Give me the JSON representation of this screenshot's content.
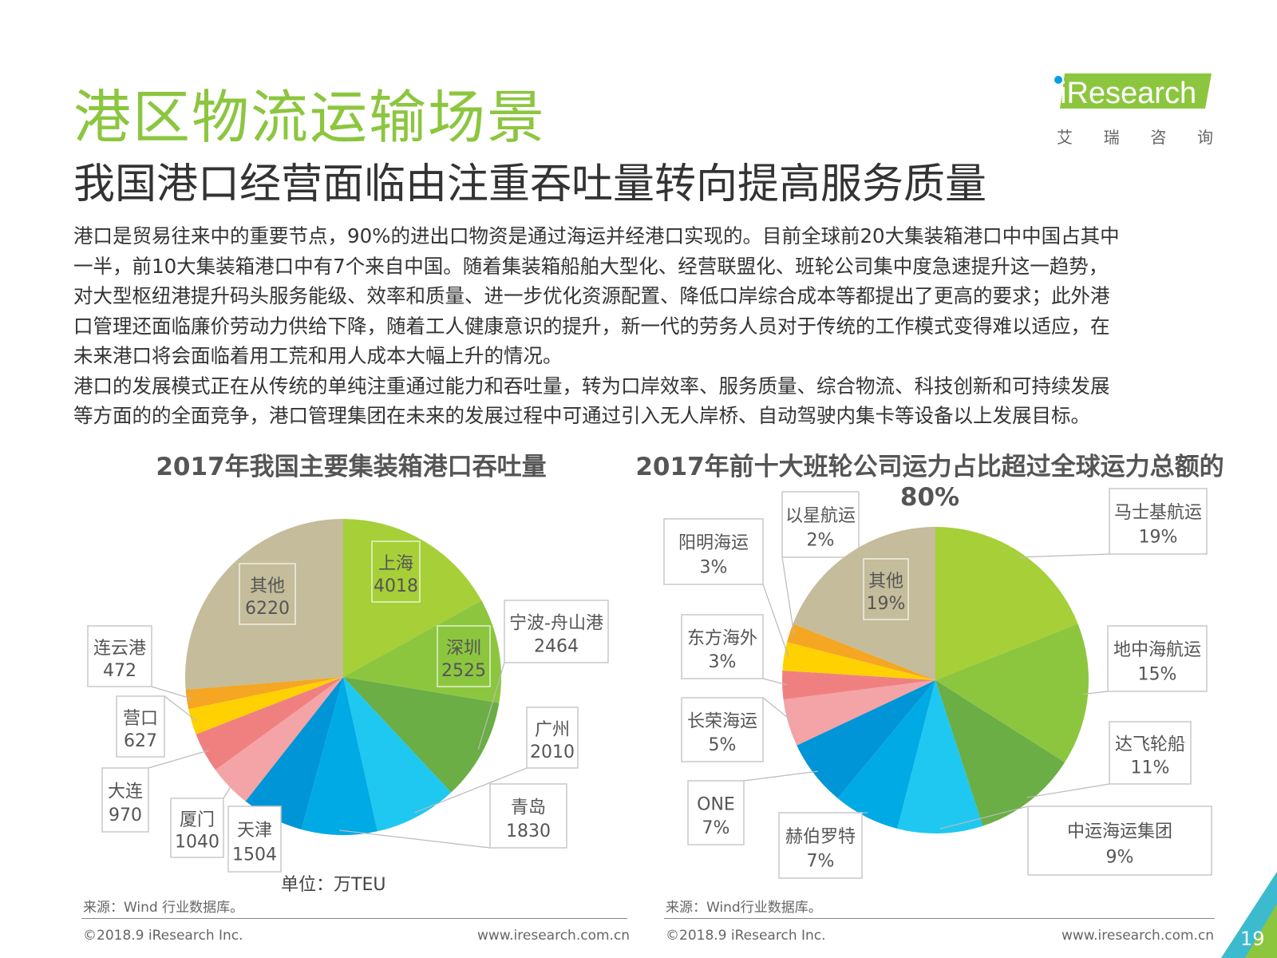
{
  "header": {
    "title": "港区物流运输场景",
    "subtitle": "我国港口经营面临由注重吞吐量转向提高服务质量",
    "logo_text": "iResearch",
    "logo_cn": [
      "艾",
      "瑞",
      "咨",
      "询"
    ]
  },
  "body_lines": [
    "港口是贸易往来中的重要节点，90%的进出口物资是通过海运并经港口实现的。目前全球前20大集装箱港口中中国占其中",
    "一半，前10大集装箱港口中有7个来自中国。随着集装箱船舶大型化、经营联盟化、班轮公司集中度急速提升这一趋势，",
    "对大型枢纽港提升码头服务能级、效率和质量、进一步优化资源配置、降低口岸综合成本等都提出了更高的要求；此外港",
    "口管理还面临廉价劳动力供给下降，随着工人健康意识的提升，新一代的劳务人员对于传统的工作模式变得难以适应，在",
    "未来港口将会面临着用工荒和用人成本大幅上升的情况。",
    "港口的发展模式正在从传统的单纯注重通过能力和吞吐量，转为口岸效率、服务质量、综合物流、科技创新和可持续发展",
    "等方面的的全面竞争，港口管理集团在未来的发展过程中可通过引入无人岸桥、自动驾驶内集卡等设备以上发展目标。"
  ],
  "chart_data": [
    {
      "type": "pie",
      "title": "2017年我国主要集装箱港口吞吐量",
      "unit_label": "单位：万TEU",
      "labels": [
        "上海",
        "深圳",
        "宁波-舟山港",
        "广州",
        "青岛",
        "天津",
        "厦门",
        "大连",
        "营口",
        "连云港",
        "其他"
      ],
      "values": [
        4018,
        2525,
        2464,
        2010,
        1830,
        1504,
        1040,
        970,
        627,
        472,
        6220
      ],
      "value_labels": [
        "4018",
        "2525",
        "2464",
        "2010",
        "1830",
        "1504",
        "1040",
        "970",
        "627",
        "472",
        "6220"
      ],
      "colors": [
        "#a6cf38",
        "#8cc63f",
        "#6aae45",
        "#1ec8f0",
        "#00aae4",
        "#0095d6",
        "#f4a3a6",
        "#f08080",
        "#ffd100",
        "#f5a623",
        "#c4bc9a"
      ],
      "start_angle_deg": 0,
      "direction": "clockwise",
      "source": "来源：Wind 行业数据库。"
    },
    {
      "type": "pie",
      "title": "2017年前十大班轮公司运力占比超过全球运力总额的80%",
      "labels": [
        "马士基航运",
        "地中海航运",
        "达飞轮船",
        "中运海运集团",
        "赫伯罗特",
        "ONE",
        "长荣海运",
        "东方海外",
        "阳明海运",
        "以星航运",
        "其他"
      ],
      "values": [
        19,
        15,
        11,
        9,
        7,
        7,
        5,
        3,
        3,
        2,
        19
      ],
      "value_labels": [
        "19%",
        "15%",
        "11%",
        "9%",
        "7%",
        "7%",
        "5%",
        "3%",
        "3%",
        "2%",
        "19%"
      ],
      "colors": [
        "#a6cf38",
        "#8cc63f",
        "#6aae45",
        "#1ec8f0",
        "#00aae4",
        "#0095d6",
        "#f4a3a6",
        "#f08080",
        "#ffd100",
        "#f5a623",
        "#c4bc9a"
      ],
      "start_angle_deg": 0,
      "direction": "clockwise",
      "source": "来源：Wind行业数据库。"
    }
  ],
  "footer": {
    "copyright": "©2018.9 iResearch Inc.",
    "website": "www.iresearch.com.cn",
    "page_number": "19"
  }
}
